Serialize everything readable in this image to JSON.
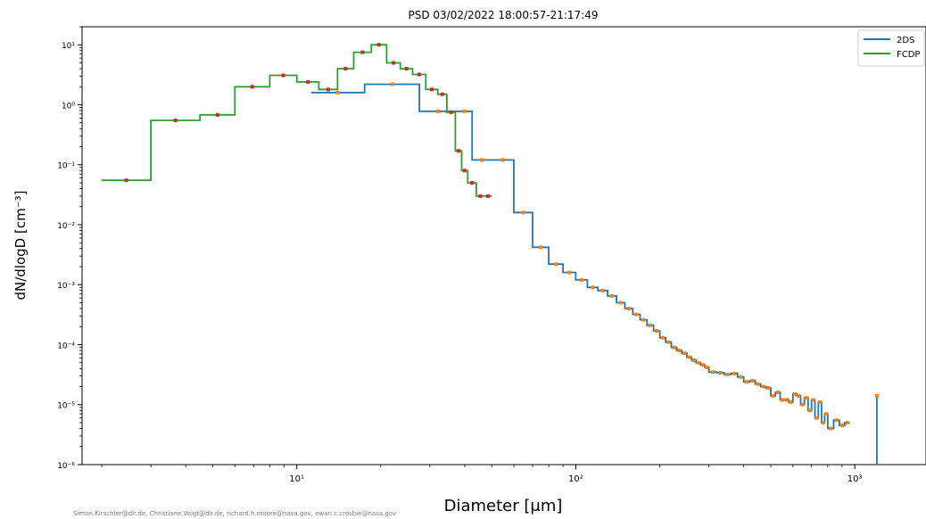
{
  "chart_data": {
    "type": "line",
    "title": "PSD 03/02/2022 18:00:57-21:17:49",
    "xlabel": "Diameter [μm]",
    "ylabel": "dN/dlogD [cm⁻³]",
    "xscale": "log",
    "yscale": "log",
    "xlim": [
      1.7,
      1800
    ],
    "ylim": [
      1e-06,
      20
    ],
    "x_ticks": [
      {
        "value": 10,
        "label": "10¹"
      },
      {
        "value": 100,
        "label": "10²"
      },
      {
        "value": 1000,
        "label": "10³"
      }
    ],
    "y_ticks": [
      {
        "value": 10,
        "label": "10¹"
      },
      {
        "value": 1,
        "label": "10⁰"
      },
      {
        "value": 0.1,
        "label": "10⁻¹"
      },
      {
        "value": 0.01,
        "label": "10⁻²"
      },
      {
        "value": 0.001,
        "label": "10⁻³"
      },
      {
        "value": 0.0001,
        "label": "10⁻⁴"
      },
      {
        "value": 1e-05,
        "label": "10⁻⁵"
      },
      {
        "value": 1e-06,
        "label": "10⁻⁶"
      }
    ],
    "legend_position": "top-right",
    "series": [
      {
        "name": "2DS",
        "color": "#1f77b4",
        "marker_color": "#ff7f0e",
        "edges": [
          11.25,
          17.5,
          27.5,
          37.5,
          42.5,
          50,
          60,
          70,
          80,
          90,
          100,
          110,
          120,
          130,
          140,
          150,
          160,
          170,
          180,
          190,
          200,
          210,
          220,
          230,
          240,
          250,
          260,
          270,
          280,
          290,
          300,
          320,
          340,
          360,
          380,
          400,
          420,
          440,
          460,
          480,
          500,
          520,
          540,
          560,
          580,
          600,
          620,
          640,
          660,
          680,
          700,
          720,
          740,
          760,
          780,
          800,
          840,
          880,
          920,
          960
        ],
        "values": [
          1.6,
          2.2,
          0.78,
          0.78,
          0.12,
          0.12,
          0.016,
          0.0042,
          0.0022,
          0.0016,
          0.0012,
          0.0009,
          0.0008,
          0.00065,
          0.0005,
          0.0004,
          0.00032,
          0.00026,
          0.00021,
          0.00017,
          0.00013,
          0.00011,
          9e-05,
          8e-05,
          7.2e-05,
          6.2e-05,
          5.5e-05,
          5e-05,
          4.6e-05,
          4.2e-05,
          3.5e-05,
          3.4e-05,
          3.2e-05,
          3.3e-05,
          2.9e-05,
          2.4e-05,
          2.5e-05,
          2.2e-05,
          2e-05,
          1.9e-05,
          1.4e-05,
          1.6e-05,
          1.2e-05,
          1.2e-05,
          1.1e-05,
          1.5e-05,
          1.4e-05,
          1e-05,
          1.3e-05,
          8e-06,
          1.2e-05,
          6e-06,
          1.1e-05,
          5e-06,
          7e-06,
          4e-06,
          5.5e-06,
          4.5e-06,
          5e-06
        ],
        "spikes": [
          {
            "x": 1200,
            "y": 1.4e-05
          }
        ]
      },
      {
        "name": "FCDP",
        "color": "#2ca02c",
        "marker_color": "#d62728",
        "edges": [
          2,
          3,
          4.5,
          6,
          8,
          10,
          12,
          14,
          16,
          18.5,
          21,
          23.5,
          26,
          29,
          32,
          34.5,
          37,
          39,
          41,
          44,
          47,
          50
        ],
        "values": [
          0.055,
          0.55,
          0.68,
          2.0,
          3.1,
          2.4,
          1.8,
          4.0,
          7.5,
          10.0,
          5.0,
          4.0,
          3.2,
          1.8,
          1.5,
          0.75,
          0.17,
          0.08,
          0.05,
          0.03,
          0.03
        ]
      }
    ]
  },
  "credits": "Simon.Kirschler@dlr.de, Christiane.Voigt@dlr.de, richard.h.moore@nasa.gov, ewan.c.crosbie@nasa.gov"
}
